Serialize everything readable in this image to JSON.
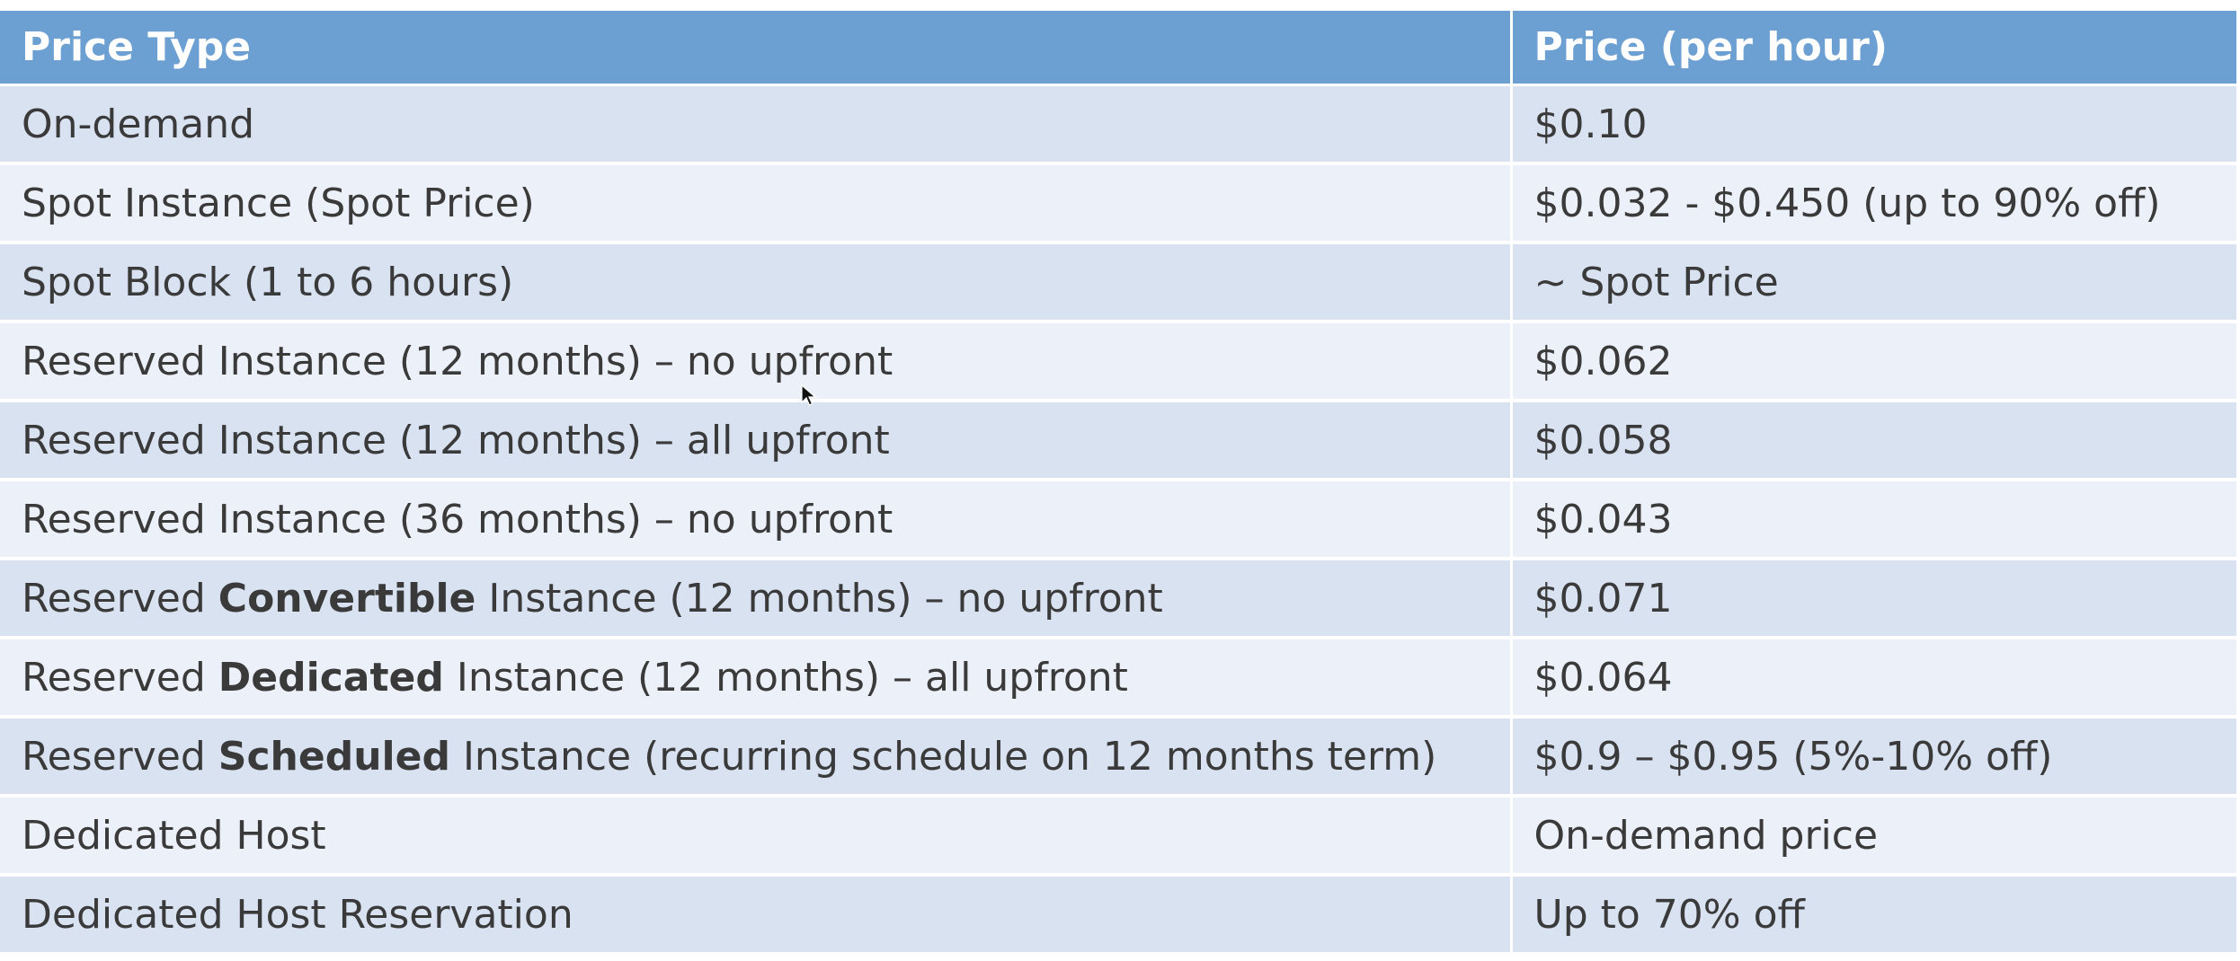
{
  "table": {
    "headers": [
      "Price Type",
      "Price (per hour)"
    ],
    "rows": [
      {
        "pre": "On-demand",
        "bold": "",
        "post": "",
        "price": "$0.10"
      },
      {
        "pre": "Spot Instance (Spot Price)",
        "bold": "",
        "post": "",
        "price": "$0.032 - $0.450 (up to 90% off)"
      },
      {
        "pre": "Spot Block (1 to 6 hours)",
        "bold": "",
        "post": "",
        "price": "~ Spot Price"
      },
      {
        "pre": "Reserved Instance (12 months) – no upfront",
        "bold": "",
        "post": "",
        "price": "$0.062"
      },
      {
        "pre": "Reserved Instance (12 months) – all upfront",
        "bold": "",
        "post": "",
        "price": "$0.058"
      },
      {
        "pre": "Reserved Instance (36 months) – no upfront",
        "bold": "",
        "post": "",
        "price": "$0.043"
      },
      {
        "pre": "Reserved ",
        "bold": "Convertible",
        "post": " Instance (12 months) – no upfront",
        "price": "$0.071"
      },
      {
        "pre": "Reserved ",
        "bold": "Dedicated",
        "post": " Instance (12 months) – all upfront",
        "price": "$0.064"
      },
      {
        "pre": "Reserved ",
        "bold": "Scheduled",
        "post": " Instance (recurring schedule on 12 months term)",
        "price": "$0.9 – $0.95 (5%-10% off)"
      },
      {
        "pre": "Dedicated Host",
        "bold": "",
        "post": "",
        "price": "On-demand price"
      },
      {
        "pre": "Dedicated Host Reservation",
        "bold": "",
        "post": "",
        "price": "Up to 70% off"
      }
    ]
  },
  "colors": {
    "header_bg": "#6c9fd2",
    "row_dark": "#d9e2f1",
    "row_light": "#ecf0f8",
    "text": "#3a3a3a"
  },
  "icons": {
    "cursor": "mouse-pointer-icon"
  }
}
